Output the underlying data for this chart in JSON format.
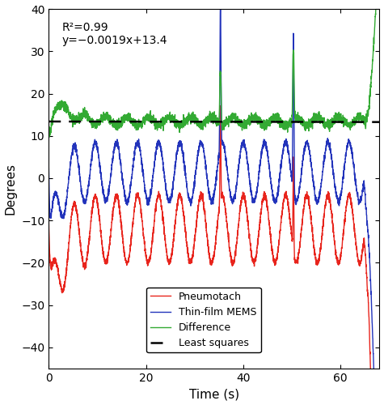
{
  "xlabel": "Time (s)",
  "ylabel": "Degrees",
  "xlim": [
    0,
    68
  ],
  "ylim": [
    -45,
    40
  ],
  "yticks": [
    -40,
    -30,
    -20,
    -10,
    0,
    10,
    20,
    30,
    40
  ],
  "xticks": [
    0,
    20,
    40,
    60
  ],
  "annotation_line1": "R²=0.99",
  "annotation_line2": "y=−0.0019x+13.4",
  "least_squares_slope": -0.0019,
  "least_squares_intercept": 13.4,
  "pneumotach_color": "#e8241c",
  "mems_color": "#2233bb",
  "difference_color": "#33aa33",
  "least_squares_color": "#000000",
  "legend_labels": [
    "Pneumotach",
    "Thin-film MEMS",
    "Difference",
    "Least squares"
  ],
  "background_color": "#ffffff"
}
